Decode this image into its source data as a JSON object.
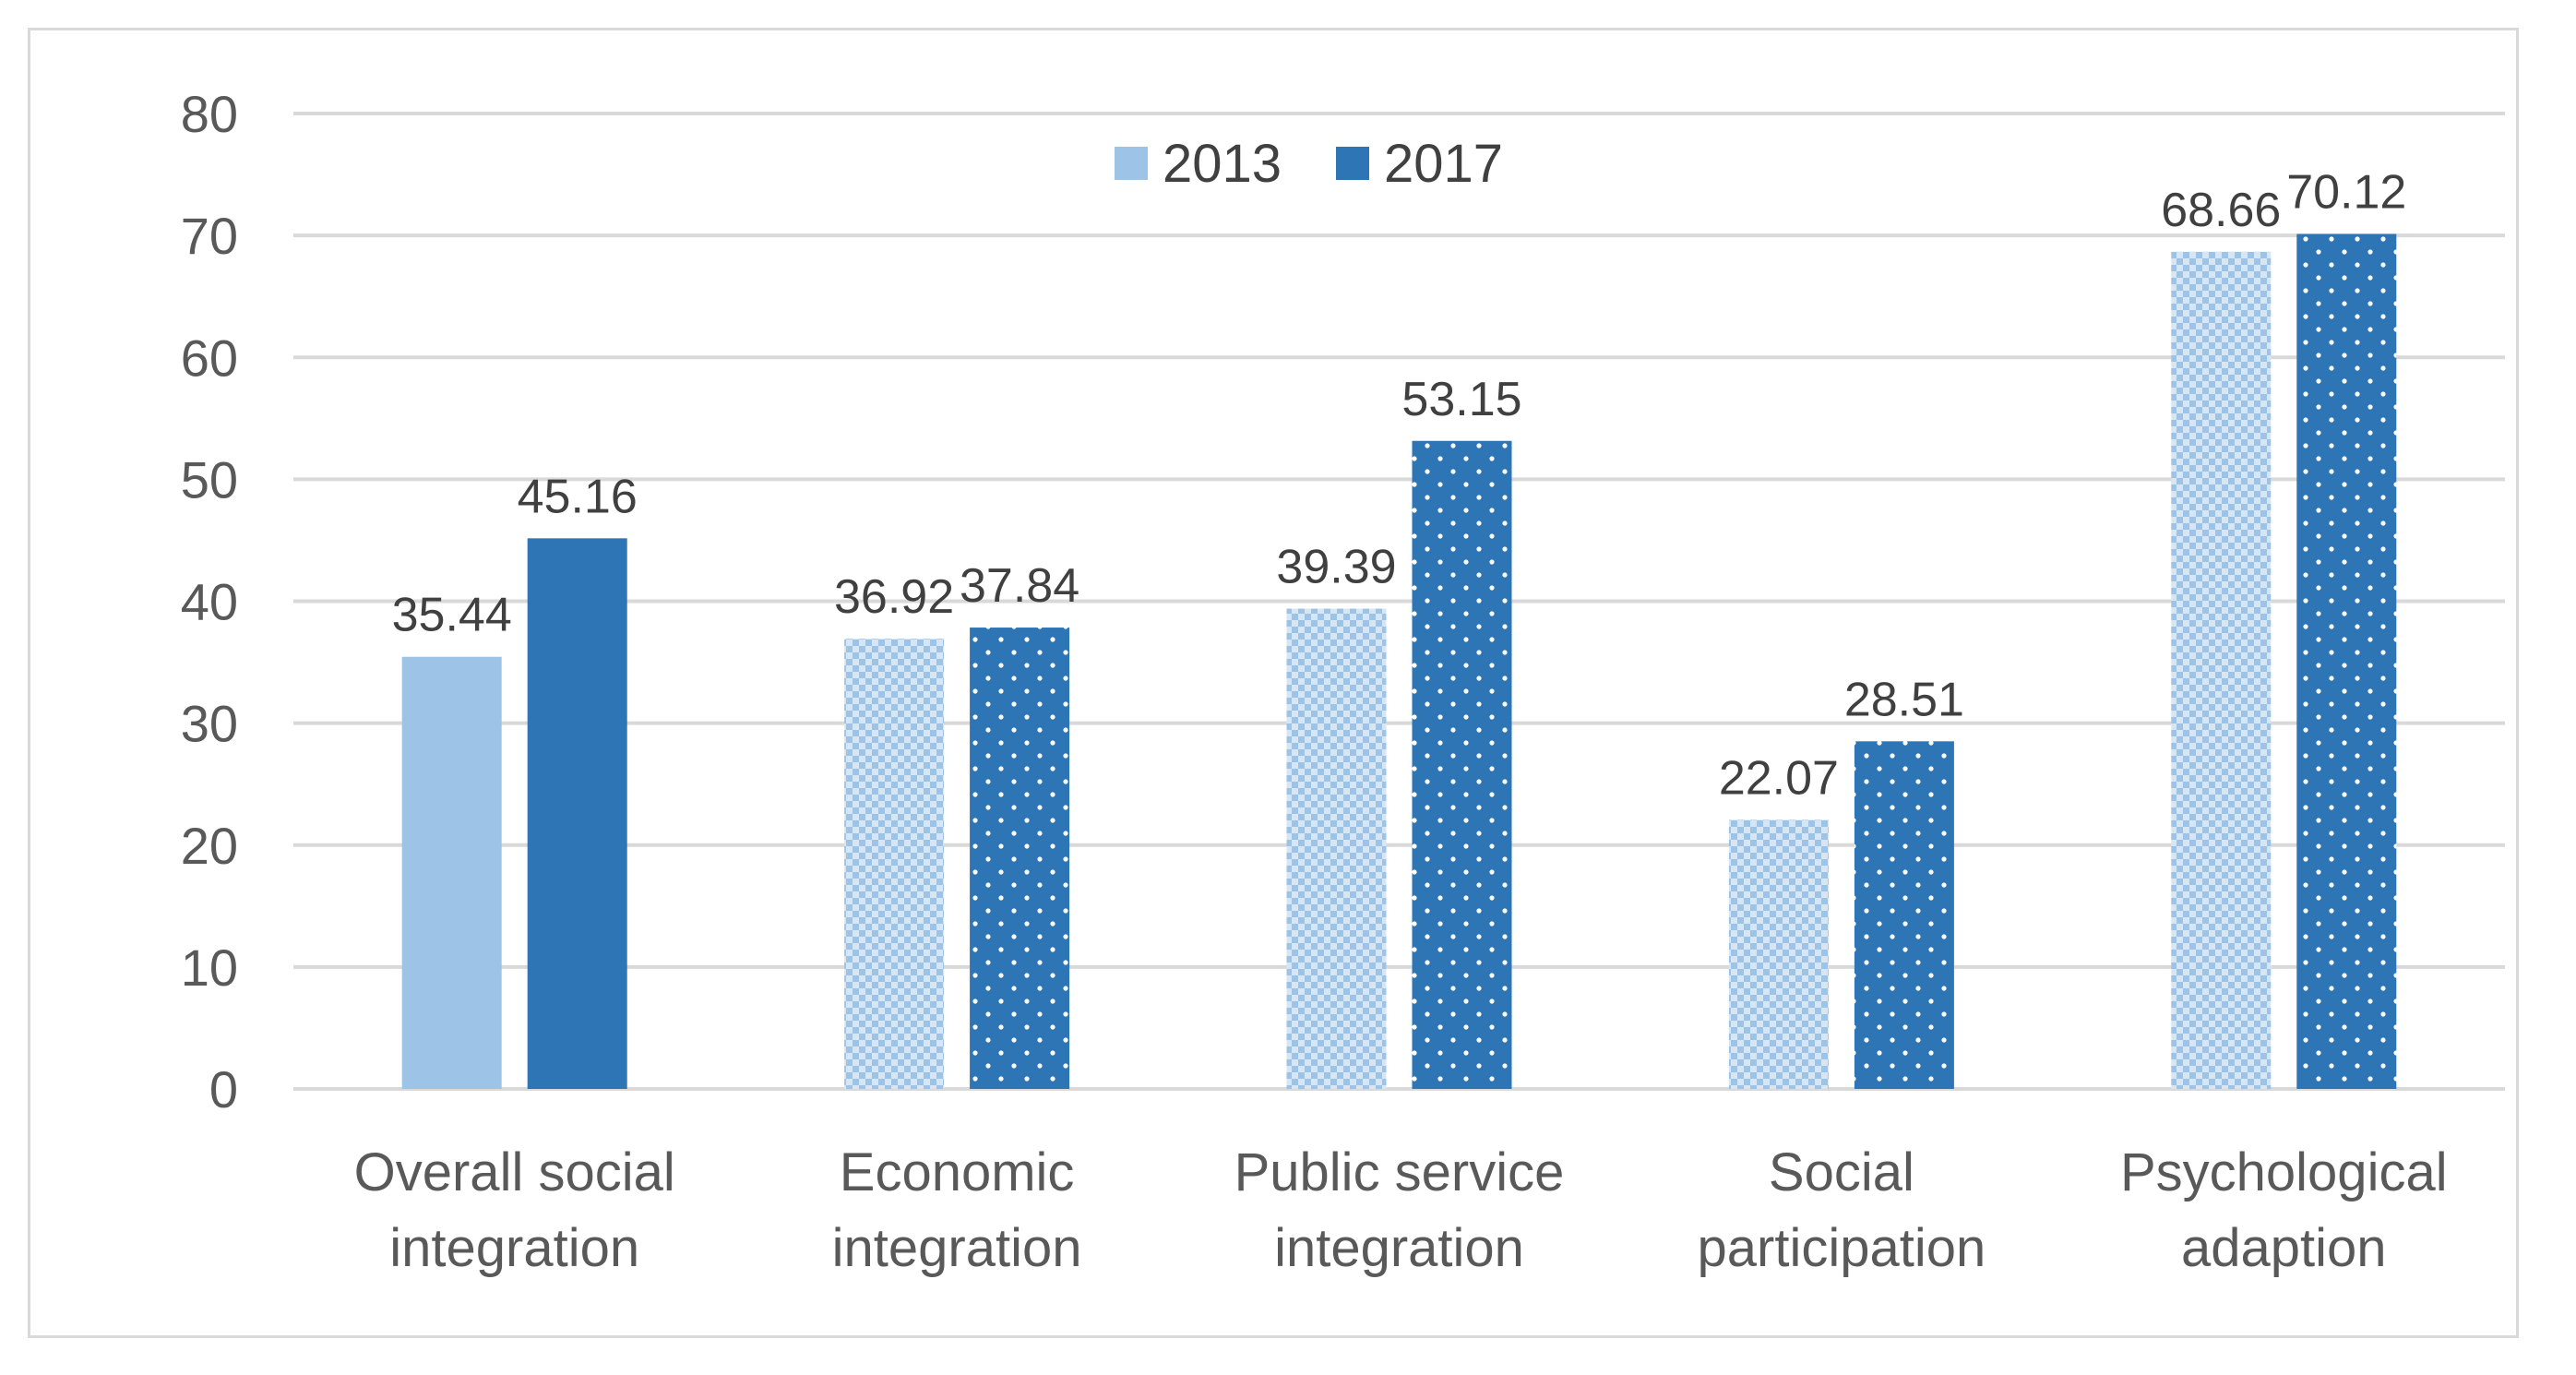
{
  "chart_data": {
    "type": "bar",
    "title": "",
    "xlabel": "",
    "ylabel": "",
    "ylim": [
      0,
      80
    ],
    "yticks": [
      0,
      10,
      20,
      30,
      40,
      50,
      60,
      70,
      80
    ],
    "grid": true,
    "legend_position": "top-center",
    "categories": [
      [
        "Overall social",
        "integration"
      ],
      [
        "Economic",
        "integration"
      ],
      [
        "Public service",
        "integration"
      ],
      [
        "Social",
        "participation"
      ],
      [
        "Psychological",
        "adaption"
      ]
    ],
    "series": [
      {
        "name": "2013",
        "color": "#9dc3e6",
        "values": [
          35.44,
          36.92,
          39.39,
          22.07,
          68.66
        ],
        "labels": [
          "35.44",
          "36.92",
          "39.39",
          "22.07",
          "68.66"
        ],
        "fills": [
          "solid",
          "checker",
          "checker",
          "checker",
          "checker"
        ]
      },
      {
        "name": "2017",
        "color": "#2e75b6",
        "values": [
          45.16,
          37.84,
          53.15,
          28.51,
          70.12
        ],
        "labels": [
          "45.16",
          "37.84",
          "53.15",
          "28.51",
          "70.12"
        ],
        "fills": [
          "solid",
          "dots",
          "dots",
          "dots",
          "dots"
        ]
      }
    ]
  }
}
